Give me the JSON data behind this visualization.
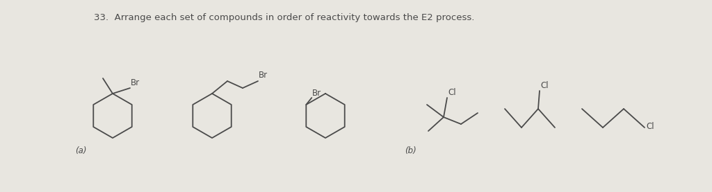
{
  "title": "33.  Arrange each set of compounds in order of reactivity towards the E2 process.",
  "background_color": "#e8e6e0",
  "text_color": "#4a4a4a",
  "label_a": "(a)",
  "label_b": "(b)",
  "figsize": [
    10.24,
    2.77
  ],
  "dpi": 100
}
